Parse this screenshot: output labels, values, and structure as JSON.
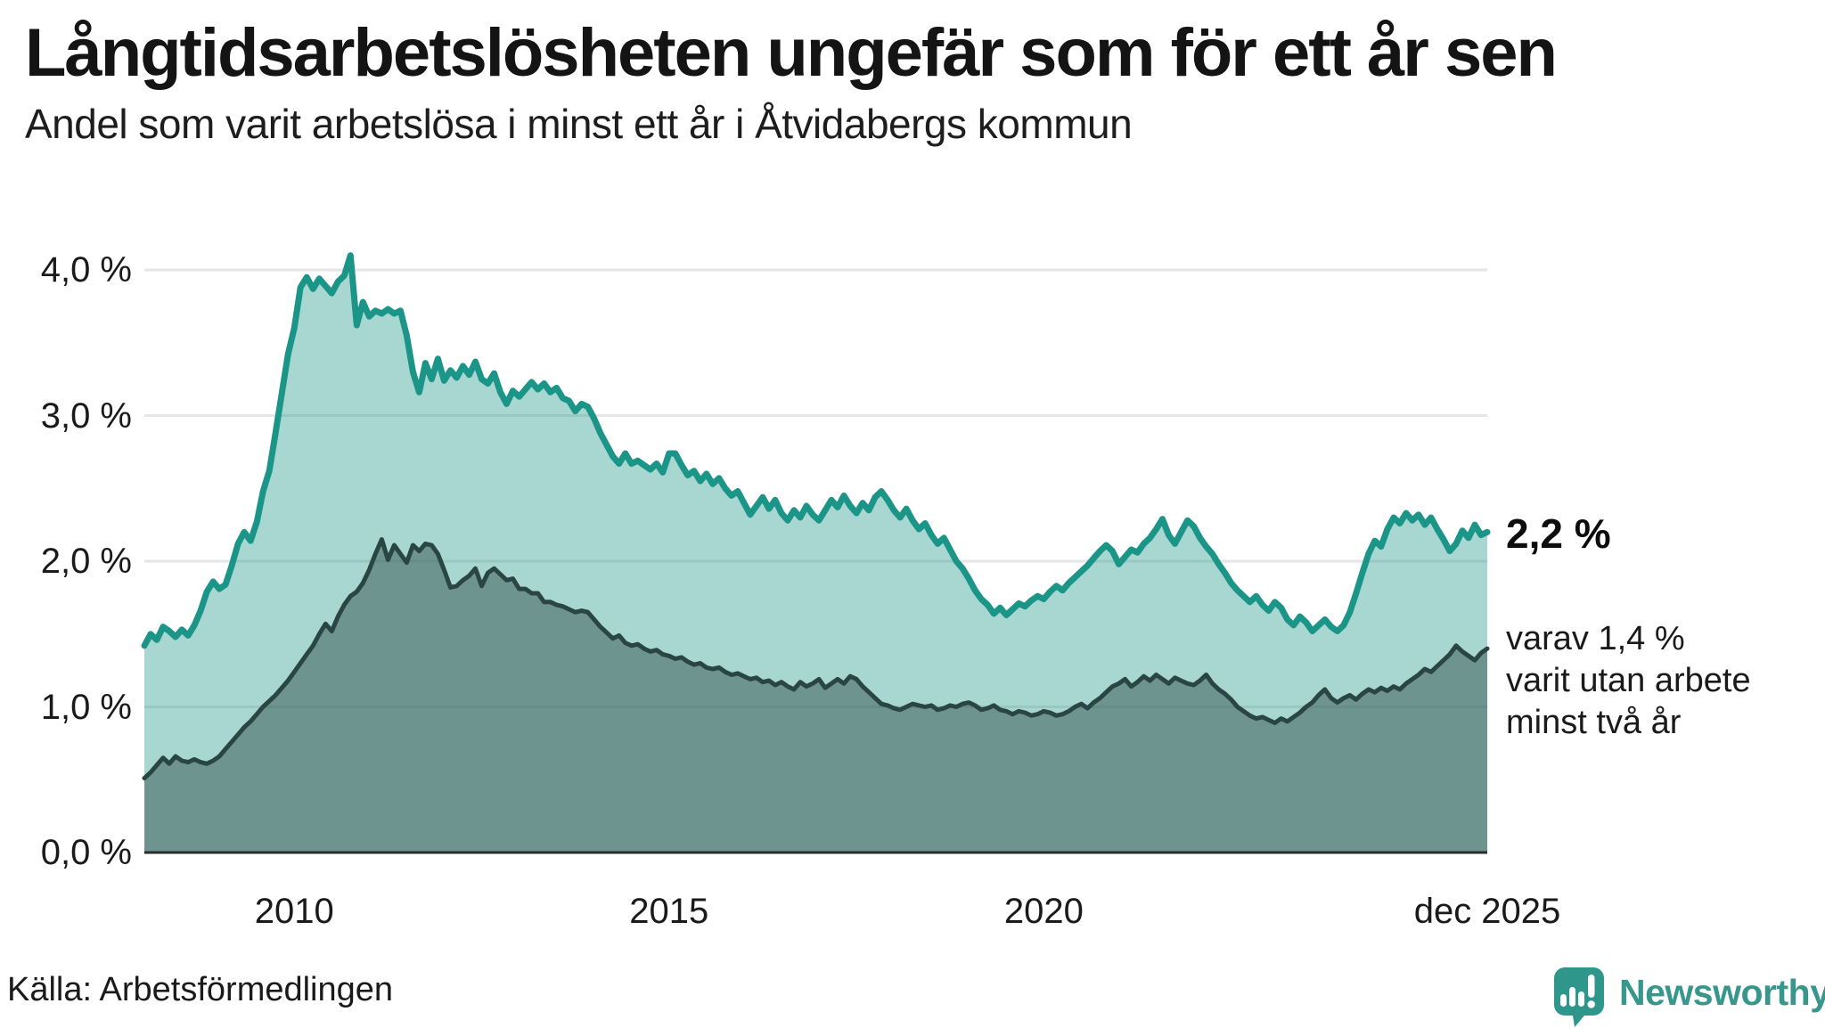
{
  "header": {
    "title": "Långtidsarbetslösheten ungefär som för ett år sen",
    "subtitle": "Andel som varit arbetslösa i minst ett år i Åtvidabergs kommun"
  },
  "annotations": {
    "latest_value": "2,2 %",
    "note_line1": "varav 1,4 %",
    "note_line2": "varit utan arbete",
    "note_line3": "minst två år"
  },
  "footer": {
    "source": "Källa: Arbetsförmedlingen",
    "brand": "Newsworthy"
  },
  "colors": {
    "line_one_year": "#1a9587",
    "fill_one_year": "rgba(26,149,135,0.38)",
    "line_two_years": "#2a4642",
    "fill_two_years": "rgba(42,70,66,0.46)",
    "grid": "#e6e6ea",
    "axis": "#2b2b2b",
    "brand_teal": "#2f968b",
    "text": "#161616"
  },
  "chart_data": {
    "type": "area",
    "title": "Långtidsarbetslösheten ungefär som för ett år sen",
    "subtitle": "Andel som varit arbetslösa i minst ett år i Åtvidabergs kommun",
    "unit": "%",
    "frequency": "monthly",
    "x_start_year": 2008.0,
    "x_end_year": 2025.9167,
    "ylim": [
      0,
      4.3
    ],
    "grid": true,
    "yticks": {
      "labels": [
        "4,0 %",
        "3,0 %",
        "2,0 %",
        "1,0 %",
        "0,0 %"
      ],
      "values": [
        4,
        3,
        2,
        1,
        0
      ]
    },
    "xticks": [
      {
        "label": "2010",
        "year": 2010.0
      },
      {
        "label": "2015",
        "year": 2015.0
      },
      {
        "label": "2020",
        "year": 2020.0
      },
      {
        "label": "dec 2025",
        "year": 2025.9167
      }
    ],
    "latest": {
      "one_year": "2,2 %",
      "two_years": "1,4 %"
    },
    "series": [
      {
        "name": "Arbetslösa minst ett år",
        "latest_label": "2,2 %",
        "values": [
          1.42,
          1.5,
          1.46,
          1.55,
          1.52,
          1.48,
          1.53,
          1.49,
          1.56,
          1.66,
          1.79,
          1.86,
          1.81,
          1.84,
          1.97,
          2.12,
          2.2,
          2.14,
          2.27,
          2.48,
          2.62,
          2.88,
          3.15,
          3.42,
          3.6,
          3.88,
          3.95,
          3.87,
          3.94,
          3.89,
          3.84,
          3.92,
          3.96,
          4.1,
          3.62,
          3.78,
          3.68,
          3.72,
          3.7,
          3.73,
          3.7,
          3.72,
          3.55,
          3.3,
          3.16,
          3.36,
          3.25,
          3.39,
          3.24,
          3.31,
          3.26,
          3.34,
          3.28,
          3.37,
          3.25,
          3.22,
          3.29,
          3.16,
          3.08,
          3.17,
          3.13,
          3.18,
          3.23,
          3.18,
          3.22,
          3.16,
          3.19,
          3.12,
          3.1,
          3.03,
          3.08,
          3.06,
          2.98,
          2.88,
          2.8,
          2.72,
          2.67,
          2.74,
          2.67,
          2.69,
          2.66,
          2.63,
          2.67,
          2.61,
          2.74,
          2.74,
          2.66,
          2.59,
          2.62,
          2.55,
          2.6,
          2.53,
          2.57,
          2.5,
          2.45,
          2.48,
          2.4,
          2.32,
          2.38,
          2.44,
          2.36,
          2.42,
          2.33,
          2.28,
          2.35,
          2.3,
          2.38,
          2.32,
          2.28,
          2.35,
          2.42,
          2.37,
          2.45,
          2.38,
          2.33,
          2.4,
          2.35,
          2.44,
          2.48,
          2.42,
          2.35,
          2.3,
          2.36,
          2.28,
          2.22,
          2.26,
          2.18,
          2.12,
          2.16,
          2.08,
          2.0,
          1.95,
          1.88,
          1.8,
          1.74,
          1.7,
          1.64,
          1.68,
          1.63,
          1.67,
          1.71,
          1.69,
          1.73,
          1.76,
          1.74,
          1.79,
          1.83,
          1.8,
          1.85,
          1.89,
          1.93,
          1.97,
          2.02,
          2.07,
          2.11,
          2.07,
          1.98,
          2.03,
          2.08,
          2.06,
          2.12,
          2.16,
          2.22,
          2.29,
          2.18,
          2.12,
          2.2,
          2.28,
          2.24,
          2.16,
          2.1,
          2.05,
          1.98,
          1.92,
          1.85,
          1.8,
          1.76,
          1.72,
          1.76,
          1.7,
          1.66,
          1.72,
          1.68,
          1.6,
          1.56,
          1.62,
          1.58,
          1.52,
          1.56,
          1.6,
          1.55,
          1.52,
          1.56,
          1.65,
          1.78,
          1.92,
          2.05,
          2.14,
          2.1,
          2.22,
          2.3,
          2.26,
          2.33,
          2.28,
          2.32,
          2.25,
          2.3,
          2.22,
          2.15,
          2.07,
          2.12,
          2.21,
          2.16,
          2.25,
          2.18,
          2.2
        ]
      },
      {
        "name": "Arbetslösa minst två år",
        "latest_label": "1,4 %",
        "values": [
          0.51,
          0.55,
          0.6,
          0.65,
          0.61,
          0.66,
          0.63,
          0.62,
          0.64,
          0.62,
          0.61,
          0.63,
          0.66,
          0.71,
          0.76,
          0.81,
          0.86,
          0.9,
          0.95,
          1.0,
          1.04,
          1.08,
          1.13,
          1.18,
          1.24,
          1.3,
          1.36,
          1.42,
          1.5,
          1.57,
          1.52,
          1.62,
          1.7,
          1.76,
          1.79,
          1.85,
          1.94,
          2.05,
          2.15,
          2.01,
          2.11,
          2.05,
          1.99,
          2.11,
          2.07,
          2.12,
          2.11,
          2.05,
          1.94,
          1.82,
          1.83,
          1.87,
          1.9,
          1.95,
          1.83,
          1.92,
          1.95,
          1.91,
          1.87,
          1.88,
          1.81,
          1.81,
          1.78,
          1.78,
          1.72,
          1.72,
          1.7,
          1.69,
          1.67,
          1.65,
          1.66,
          1.65,
          1.6,
          1.55,
          1.51,
          1.47,
          1.49,
          1.44,
          1.42,
          1.43,
          1.4,
          1.38,
          1.39,
          1.36,
          1.35,
          1.33,
          1.34,
          1.31,
          1.29,
          1.3,
          1.27,
          1.26,
          1.27,
          1.24,
          1.22,
          1.23,
          1.21,
          1.19,
          1.2,
          1.17,
          1.18,
          1.15,
          1.17,
          1.14,
          1.12,
          1.17,
          1.14,
          1.16,
          1.19,
          1.13,
          1.16,
          1.19,
          1.16,
          1.21,
          1.19,
          1.14,
          1.1,
          1.06,
          1.02,
          1.01,
          0.99,
          0.98,
          1.0,
          1.02,
          1.01,
          1.0,
          1.01,
          0.98,
          0.99,
          1.01,
          1.0,
          1.02,
          1.03,
          1.01,
          0.98,
          0.99,
          1.01,
          0.98,
          0.97,
          0.95,
          0.97,
          0.96,
          0.94,
          0.95,
          0.97,
          0.96,
          0.94,
          0.95,
          0.97,
          1.0,
          1.02,
          0.99,
          1.03,
          1.06,
          1.1,
          1.14,
          1.16,
          1.19,
          1.14,
          1.17,
          1.21,
          1.18,
          1.22,
          1.19,
          1.16,
          1.2,
          1.18,
          1.16,
          1.15,
          1.18,
          1.22,
          1.16,
          1.12,
          1.09,
          1.05,
          1.0,
          0.97,
          0.94,
          0.92,
          0.93,
          0.91,
          0.89,
          0.92,
          0.9,
          0.93,
          0.96,
          1.0,
          1.03,
          1.08,
          1.12,
          1.06,
          1.03,
          1.06,
          1.08,
          1.05,
          1.09,
          1.12,
          1.1,
          1.13,
          1.11,
          1.14,
          1.12,
          1.16,
          1.19,
          1.22,
          1.26,
          1.24,
          1.28,
          1.32,
          1.36,
          1.42,
          1.38,
          1.35,
          1.32,
          1.37,
          1.4
        ]
      }
    ]
  }
}
